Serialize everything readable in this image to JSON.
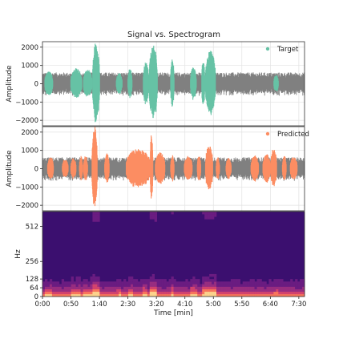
{
  "chart_data": {
    "type": "line",
    "title": "Signal vs. Spectrogram",
    "duration_min": 7.667,
    "panels": [
      {
        "id": "target",
        "ylabel": "Amplitude",
        "ylim": [
          -2300,
          2300
        ],
        "yticks": [
          -2000,
          -1000,
          0,
          1000,
          2000
        ],
        "yticklabels": [
          "−2000",
          "−1000",
          "0",
          "1000",
          "2000"
        ],
        "grid": true,
        "legend": "top-right",
        "series": [
          {
            "name": "",
            "color": "#808080",
            "amplitude": 620
          },
          {
            "name": "Target",
            "color": "#66c2a5",
            "legend_color": "#66c2a5",
            "segments": [
              [
                0.07,
                0.3,
                700
              ],
              [
                0.83,
                1.15,
                850
              ],
              [
                1.2,
                1.45,
                800
              ],
              [
                1.47,
                1.67,
                2300
              ],
              [
                2.16,
                2.33,
                600
              ],
              [
                2.5,
                2.62,
                850
              ],
              [
                2.95,
                3.1,
                1200
              ],
              [
                3.12,
                3.36,
                2100
              ],
              [
                3.75,
                3.85,
                1350
              ],
              [
                4.33,
                4.5,
                900
              ],
              [
                4.66,
                4.75,
                1400
              ],
              [
                4.77,
                5.06,
                1800
              ],
              [
                6.77,
                6.9,
                500
              ]
            ]
          }
        ]
      },
      {
        "id": "predicted",
        "ylabel": "Amplitude",
        "ylim": [
          -2300,
          2300
        ],
        "yticks": [
          -2000,
          -1000,
          0,
          1000,
          2000
        ],
        "yticklabels": [
          "−2000",
          "−1000",
          "0",
          "1000",
          "2000"
        ],
        "grid": true,
        "legend": "top-right",
        "series": [
          {
            "name": "",
            "color": "#808080",
            "amplitude": 620
          },
          {
            "name": "Predicted",
            "color": "#fc8d62",
            "legend_color": "#fc8d62",
            "segments": [
              [
                0.15,
                0.32,
                650
              ],
              [
                0.58,
                0.75,
                550
              ],
              [
                0.83,
                0.98,
                600
              ],
              [
                1.08,
                1.17,
                700
              ],
              [
                1.2,
                1.32,
                700
              ],
              [
                1.45,
                1.6,
                2300
              ],
              [
                1.82,
                1.95,
                850
              ],
              [
                2.45,
                3.15,
                1100
              ],
              [
                3.15,
                3.23,
                1900
              ],
              [
                3.3,
                3.58,
                900
              ],
              [
                3.75,
                3.85,
                750
              ],
              [
                4.15,
                4.38,
                700
              ],
              [
                4.53,
                4.63,
                750
              ],
              [
                4.77,
                4.98,
                1300
              ],
              [
                5.08,
                5.18,
                650
              ],
              [
                5.37,
                5.52,
                600
              ],
              [
                6.1,
                6.32,
                750
              ],
              [
                6.45,
                6.67,
                800
              ],
              [
                6.68,
                6.85,
                1100
              ],
              [
                7.02,
                7.13,
                700
              ],
              [
                7.25,
                7.45,
                650
              ]
            ]
          }
        ]
      },
      {
        "id": "spectrogram",
        "type": "heatmap",
        "ylabel": "Hz",
        "ylim": [
          0,
          620
        ],
        "yticks": [
          0,
          64,
          128,
          256,
          512
        ],
        "yticklabels": [
          "0",
          "64",
          "128",
          "256",
          "512"
        ],
        "xlabel": "Time [min]",
        "xticks": [
          0,
          0.833,
          1.667,
          2.5,
          3.333,
          4.167,
          5.0,
          5.833,
          6.667,
          7.5
        ],
        "xticklabels": [
          "0:00",
          "0:50",
          "1:40",
          "2:30",
          "3:20",
          "4:10",
          "5:00",
          "5:50",
          "6:40",
          "7:30"
        ],
        "colormap": "magma"
      }
    ]
  }
}
